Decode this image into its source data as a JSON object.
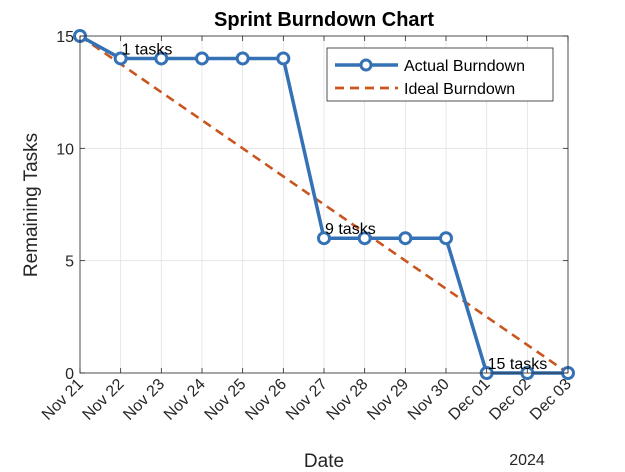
{
  "chart_data": {
    "type": "line",
    "title": "Sprint Burndown Chart",
    "xlabel": "Date",
    "ylabel": "Remaining Tasks",
    "x_year_label": "2024",
    "categories": [
      "Nov 21",
      "Nov 22",
      "Nov 23",
      "Nov 24",
      "Nov 25",
      "Nov 26",
      "Nov 27",
      "Nov 28",
      "Nov 29",
      "Nov 30",
      "Dec 01",
      "Dec 02",
      "Dec 03"
    ],
    "ylim": [
      0,
      15
    ],
    "yticks": [
      0,
      5,
      10,
      15
    ],
    "grid": true,
    "legend_position": "top-right",
    "series": [
      {
        "name": "Actual Burndown",
        "style": "solid-circle-markers",
        "color": "#3572b5",
        "values": [
          15,
          14,
          14,
          14,
          14,
          14,
          6,
          6,
          6,
          6,
          0,
          0,
          0
        ]
      },
      {
        "name": "Ideal Burndown",
        "style": "dashed",
        "color": "#c9561e",
        "values": [
          15,
          13.75,
          12.5,
          11.25,
          10,
          8.75,
          7.5,
          6.25,
          5,
          3.75,
          2.5,
          1.25,
          0
        ]
      }
    ],
    "annotations": [
      {
        "text": "1 tasks",
        "x_index": 1,
        "y": 14
      },
      {
        "text": "9 tasks",
        "x_index": 6,
        "y": 6
      },
      {
        "text": "15 tasks",
        "x_index": 10,
        "y": 0
      }
    ]
  }
}
